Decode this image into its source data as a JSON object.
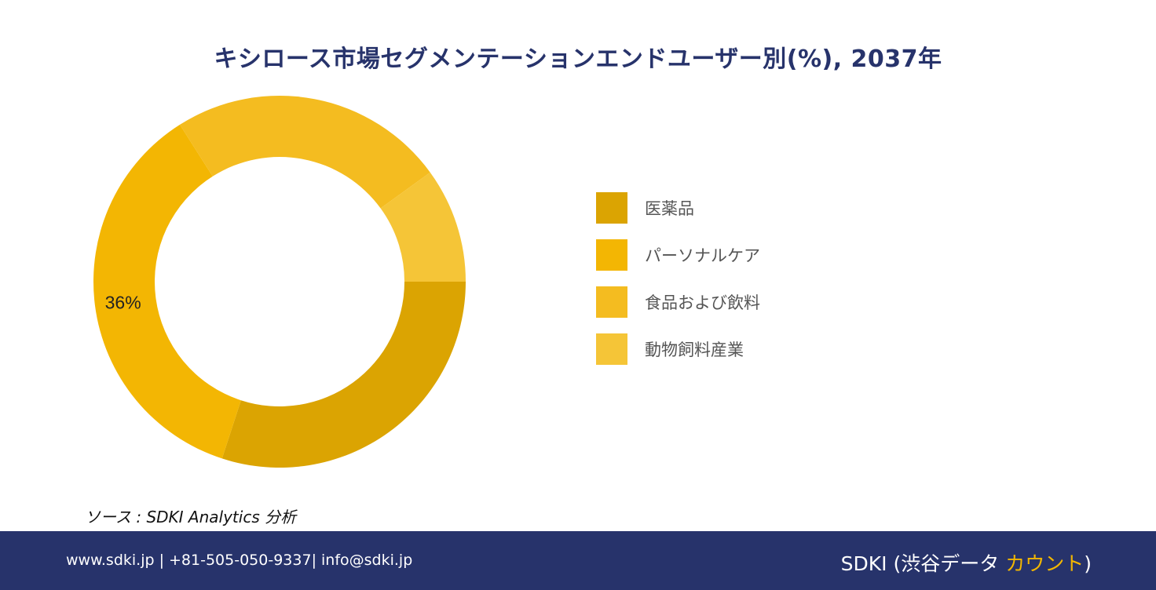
{
  "page": {
    "title": "キシロース市場セグメンテーションエンドユーザー別(%), 2037年",
    "source": "ソース : SDKI Analytics 分析"
  },
  "footer": {
    "contact": "www.sdki.jp | +81-505-050-9337| info@sdki.jp",
    "brand_prefix": "SDKI (渋谷データ ",
    "brand_accent": "カウント",
    "brand_suffix": ")",
    "accent_color": "#f3b700",
    "background_color": "#27336b"
  },
  "chart_data": {
    "type": "pie",
    "donut": true,
    "title": "キシロース市場セグメンテーションエンドユーザー別(%), 2037年",
    "legend_position": "right",
    "categories": [
      "医薬品",
      "パーソナルケア",
      "食品および飲料",
      "動物飼料産業"
    ],
    "values": [
      30,
      36,
      24,
      10
    ],
    "colors": [
      "#dba402",
      "#f3b603",
      "#f4bc20",
      "#f5c537"
    ],
    "data_labels": [
      "",
      "36%",
      "",
      ""
    ]
  }
}
